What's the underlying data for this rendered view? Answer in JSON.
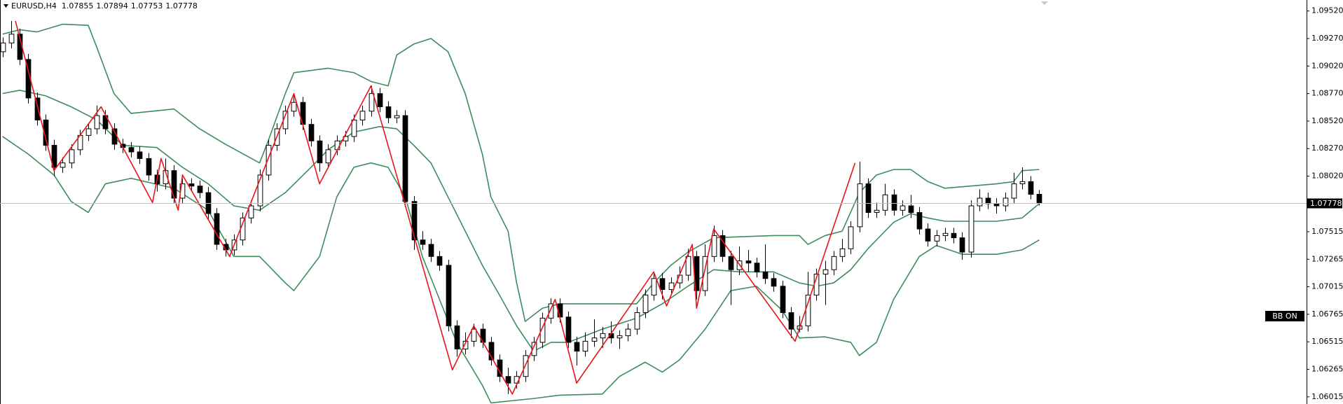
{
  "chart_data": {
    "type": "candlestick",
    "symbol": "EURUSD,H4",
    "badge": "BB ON",
    "up_color": "#ffffff",
    "down_color": "#000000",
    "wick_color": "#000000",
    "xlim": [
      -0.3,
      152.2
    ],
    "ylim": [
      1.0595,
      1.0962
    ],
    "yticks": [
      {
        "value": 1.0952,
        "label": "1.09520"
      },
      {
        "value": 1.0927,
        "label": "1.09270"
      },
      {
        "value": 1.0902,
        "label": "1.09020"
      },
      {
        "value": 1.0877,
        "label": "1.08770"
      },
      {
        "value": 1.0852,
        "label": "1.08520"
      },
      {
        "value": 1.0827,
        "label": "1.08270"
      },
      {
        "value": 1.0802,
        "label": "1.08020"
      },
      1.07515,
      1.07265,
      1.07015,
      1.06765,
      1.06515,
      1.06265,
      1.06015
    ],
    "open": [
      1.0915,
      1.0923,
      1.0931,
      1.0908,
      1.0873,
      1.0853,
      1.083,
      1.081,
      1.0814,
      1.0826,
      1.0839,
      1.0845,
      1.0857,
      1.0845,
      1.0831,
      1.0828,
      1.0824,
      1.0818,
      1.0803,
      1.0795,
      1.0807,
      1.0782,
      1.0795,
      1.0793,
      1.0787,
      1.0768,
      1.074,
      1.0735,
      1.0744,
      1.0764,
      1.0775,
      1.0803,
      1.083,
      1.0845,
      1.0861,
      1.0869,
      1.0849,
      1.0834,
      1.0814,
      1.0826,
      1.0834,
      1.0838,
      1.0853,
      1.0861,
      1.0877,
      1.0865,
      1.0855,
      1.0857,
      1.0779,
      1.0744,
      1.074,
      1.0729,
      1.0721,
      1.0666,
      1.0645,
      1.0652,
      1.0663,
      1.0651,
      1.0635,
      1.062,
      1.0614,
      1.062,
      1.0639,
      1.0651,
      1.0673,
      1.0686,
      1.0674,
      1.0651,
      1.0643,
      1.0652,
      1.0655,
      1.0659,
      1.0655,
      1.0657,
      1.0663,
      1.0678,
      1.0694,
      1.0709,
      1.0699,
      1.0705,
      1.0712,
      1.0729,
      1.0698,
      1.0729,
      1.0748,
      1.0729,
      1.0717,
      1.0725,
      1.0723,
      1.0715,
      1.0709,
      1.0702,
      1.0678,
      1.0663,
      1.0666,
      1.0694,
      1.0713,
      1.0717,
      1.0729,
      1.0736,
      1.0756,
      1.0795,
      1.0769,
      1.0771,
      1.0785,
      1.0771,
      1.0775,
      1.0769,
      1.0754,
      1.0743,
      1.0748,
      1.075,
      1.0746,
      1.0733,
      1.0775,
      1.0782,
      1.0777,
      1.0775,
      1.0782,
      1.0795,
      1.0797,
      1.07855
    ],
    "high": [
      1.0928,
      1.0943,
      1.0936,
      1.0913,
      1.0878,
      1.0858,
      1.0835,
      1.0819,
      1.0831,
      1.0844,
      1.085,
      1.0866,
      1.0862,
      1.085,
      1.0836,
      1.0833,
      1.0829,
      1.0823,
      1.0808,
      1.0818,
      1.0812,
      1.08,
      1.08,
      1.0798,
      1.0792,
      1.0773,
      1.0745,
      1.0749,
      1.0769,
      1.078,
      1.0808,
      1.0835,
      1.085,
      1.0866,
      1.0876,
      1.0874,
      1.0854,
      1.0839,
      1.0831,
      1.0839,
      1.0843,
      1.0858,
      1.0866,
      1.0884,
      1.0882,
      1.087,
      1.0862,
      1.0862,
      1.0784,
      1.0752,
      1.0745,
      1.0734,
      1.0726,
      1.0671,
      1.066,
      1.0668,
      1.0668,
      1.0656,
      1.064,
      1.0628,
      1.0625,
      1.0644,
      1.0656,
      1.0678,
      1.0691,
      1.0691,
      1.0679,
      1.0656,
      1.066,
      1.0672,
      1.0665,
      1.067,
      1.0662,
      1.0668,
      1.0683,
      1.0699,
      1.0714,
      1.0714,
      1.071,
      1.072,
      1.0736,
      1.0734,
      1.074,
      1.0757,
      1.0753,
      1.0734,
      1.0738,
      1.0735,
      1.0728,
      1.074,
      1.0714,
      1.0707,
      1.0683,
      1.0675,
      1.0715,
      1.0718,
      1.0725,
      1.0734,
      1.0745,
      1.0761,
      1.0815,
      1.08,
      1.0778,
      1.0795,
      1.079,
      1.078,
      1.0785,
      1.0774,
      1.0759,
      1.0753,
      1.0755,
      1.0755,
      1.0751,
      1.078,
      1.079,
      1.0787,
      1.0782,
      1.0787,
      1.0805,
      1.081,
      1.0802,
      1.07894
    ],
    "low": [
      1.091,
      1.0918,
      1.0903,
      1.0868,
      1.0848,
      1.0825,
      1.0802,
      1.0805,
      1.0809,
      1.0821,
      1.0834,
      1.084,
      1.084,
      1.0826,
      1.0823,
      1.0819,
      1.0813,
      1.0798,
      1.0788,
      1.079,
      1.0777,
      1.0777,
      1.0788,
      1.0782,
      1.0763,
      1.0735,
      1.0729,
      1.073,
      1.0739,
      1.0759,
      1.077,
      1.0798,
      1.0825,
      1.084,
      1.0856,
      1.0844,
      1.0829,
      1.0806,
      1.0809,
      1.0821,
      1.0829,
      1.0833,
      1.0848,
      1.0856,
      1.086,
      1.085,
      1.085,
      1.0774,
      1.0735,
      1.0735,
      1.0724,
      1.0716,
      1.0661,
      1.0638,
      1.064,
      1.0647,
      1.0646,
      1.063,
      1.0615,
      1.0604,
      1.0609,
      1.0615,
      1.0634,
      1.0646,
      1.0668,
      1.0669,
      1.0646,
      1.063,
      1.0638,
      1.0647,
      1.0646,
      1.065,
      1.0645,
      1.0652,
      1.0658,
      1.0673,
      1.0689,
      1.069,
      1.0694,
      1.07,
      1.0707,
      1.069,
      1.0693,
      1.0724,
      1.0724,
      1.0685,
      1.0712,
      1.0715,
      1.071,
      1.0704,
      1.0697,
      1.0673,
      1.0655,
      1.066,
      1.0661,
      1.0689,
      1.0685,
      1.0712,
      1.0724,
      1.0731,
      1.0751,
      1.0764,
      1.0764,
      1.0766,
      1.0766,
      1.0766,
      1.0764,
      1.0749,
      1.0738,
      1.0738,
      1.0743,
      1.0741,
      1.0726,
      1.0728,
      1.077,
      1.0772,
      1.0768,
      1.077,
      1.0777,
      1.079,
      1.0781,
      1.07753
    ],
    "close": [
      1.0923,
      1.0931,
      1.0908,
      1.0873,
      1.0853,
      1.083,
      1.081,
      1.0814,
      1.0826,
      1.0839,
      1.0845,
      1.0857,
      1.0845,
      1.0831,
      1.0828,
      1.0824,
      1.0818,
      1.0803,
      1.0795,
      1.0807,
      1.0782,
      1.0795,
      1.0793,
      1.0787,
      1.0768,
      1.074,
      1.0735,
      1.0744,
      1.0764,
      1.0775,
      1.0803,
      1.083,
      1.0845,
      1.0861,
      1.0869,
      1.0849,
      1.0834,
      1.0814,
      1.0826,
      1.0834,
      1.0838,
      1.0853,
      1.0861,
      1.0877,
      1.0865,
      1.0855,
      1.0857,
      1.0779,
      1.0744,
      1.074,
      1.0729,
      1.0721,
      1.0666,
      1.0645,
      1.0652,
      1.0663,
      1.0651,
      1.0635,
      1.062,
      1.0614,
      1.062,
      1.0639,
      1.0651,
      1.0673,
      1.0686,
      1.0674,
      1.0651,
      1.0643,
      1.0652,
      1.0655,
      1.0659,
      1.0655,
      1.0657,
      1.0663,
      1.0678,
      1.0694,
      1.0709,
      1.0699,
      1.0705,
      1.0712,
      1.0729,
      1.0698,
      1.0729,
      1.0748,
      1.0729,
      1.0717,
      1.0725,
      1.0723,
      1.0715,
      1.0709,
      1.0702,
      1.0678,
      1.0663,
      1.0666,
      1.0694,
      1.0713,
      1.0717,
      1.0729,
      1.0736,
      1.0756,
      1.0795,
      1.0769,
      1.0771,
      1.0785,
      1.0771,
      1.0775,
      1.0769,
      1.0754,
      1.0743,
      1.0748,
      1.075,
      1.0746,
      1.0733,
      1.0775,
      1.0782,
      1.0777,
      1.0775,
      1.0782,
      1.0795,
      1.0797,
      1.07855,
      1.07778
    ],
    "bands": {
      "color": "#3d8c5c",
      "upper": {
        "x": [
          0,
          2,
          4,
          7,
          10,
          11,
          13,
          15,
          20,
          23,
          26,
          30,
          31,
          33,
          34,
          38,
          41,
          43,
          45,
          46,
          48,
          50,
          52,
          54,
          56,
          57,
          59,
          60,
          61,
          63,
          65,
          74,
          76,
          78,
          80,
          83,
          90,
          93,
          94,
          96,
          98,
          100,
          102,
          104,
          106,
          108,
          110,
          113,
          116,
          118,
          119,
          121
        ],
        "values": [
          1.0931,
          1.0935,
          1.0933,
          1.094,
          1.0939,
          1.0919,
          1.0877,
          1.0859,
          1.0863,
          1.0845,
          1.0831,
          1.0814,
          1.0834,
          1.0877,
          1.0896,
          1.09,
          1.0896,
          1.0888,
          1.0884,
          1.0912,
          1.0922,
          1.0927,
          1.0915,
          1.0877,
          1.0822,
          1.0783,
          1.0752,
          1.0705,
          1.067,
          1.0682,
          1.0686,
          1.0686,
          1.0705,
          1.0721,
          1.0733,
          1.0746,
          1.0748,
          1.0748,
          1.074,
          1.0748,
          1.0752,
          1.0787,
          1.0803,
          1.0808,
          1.0808,
          1.0797,
          1.0791,
          1.0793,
          1.0795,
          1.0797,
          1.0807,
          1.0808
        ]
      },
      "middle": {
        "x": [
          0,
          2,
          5,
          8,
          11,
          14,
          18,
          21,
          24,
          27,
          30,
          33,
          36,
          38,
          41,
          44,
          46,
          48,
          50,
          52,
          54,
          56,
          58,
          60,
          62,
          64,
          66,
          70,
          74,
          77,
          80,
          83,
          86,
          90,
          93,
          95,
          97,
          99,
          101,
          104,
          106,
          108,
          110,
          113,
          116,
          119,
          121
        ],
        "values": [
          1.0877,
          1.088,
          1.0875,
          1.0865,
          1.0853,
          1.083,
          1.0828,
          1.081,
          1.0795,
          1.0775,
          1.0771,
          1.0787,
          1.081,
          1.0826,
          1.0842,
          1.0847,
          1.0845,
          1.083,
          1.0814,
          1.0783,
          1.0752,
          1.0721,
          1.0694,
          1.0666,
          1.0643,
          1.0651,
          1.0651,
          1.0663,
          1.0673,
          1.0686,
          1.0702,
          1.0717,
          1.0715,
          1.0715,
          1.0705,
          1.0702,
          1.0705,
          1.0717,
          1.0736,
          1.076,
          1.0768,
          1.0764,
          1.0761,
          1.0761,
          1.0761,
          1.0764,
          1.0777
        ]
      },
      "lower": {
        "x": [
          0,
          3,
          6,
          8,
          10,
          12,
          15,
          20,
          24,
          27,
          30,
          33,
          34,
          37,
          39,
          41,
          43,
          45,
          47,
          49,
          51,
          53,
          56,
          57,
          62,
          65,
          70,
          72,
          75,
          77,
          79,
          82,
          85,
          88,
          91,
          93,
          96,
          99,
          100,
          102,
          104,
          107,
          109,
          112,
          116,
          119,
          121
        ],
        "values": [
          1.0838,
          1.0822,
          1.0803,
          1.0779,
          1.0769,
          1.0795,
          1.08,
          1.0791,
          1.0771,
          1.0729,
          1.0729,
          1.0705,
          1.0698,
          1.0729,
          1.0783,
          1.081,
          1.0814,
          1.081,
          1.0783,
          1.0729,
          1.069,
          1.0651,
          1.0612,
          1.0596,
          1.06,
          1.0603,
          1.0604,
          1.062,
          1.0633,
          1.0624,
          1.0635,
          1.0663,
          1.0698,
          1.0702,
          1.068,
          1.0655,
          1.0656,
          1.0651,
          1.0639,
          1.0651,
          1.069,
          1.0729,
          1.0739,
          1.0731,
          1.0731,
          1.0735,
          1.0744
        ]
      }
    },
    "zigzag": {
      "color": "#e8141c",
      "x": [
        1.5,
        6,
        11.5,
        17.5,
        18.5,
        20.5,
        21,
        26.5,
        34,
        37,
        43,
        52.5,
        55,
        59.5,
        64.5,
        67,
        76,
        77.5,
        80.5,
        81,
        83,
        92.5,
        99.5
      ],
      "values": [
        1.0943,
        1.0807,
        1.0865,
        1.0778,
        1.0818,
        1.0771,
        1.0803,
        1.0729,
        1.0877,
        1.0795,
        1.0884,
        1.0626,
        1.0666,
        1.0604,
        1.069,
        1.0614,
        1.0715,
        1.0684,
        1.074,
        1.0682,
        1.0754,
        1.0652,
        1.0814
      ]
    }
  }
}
